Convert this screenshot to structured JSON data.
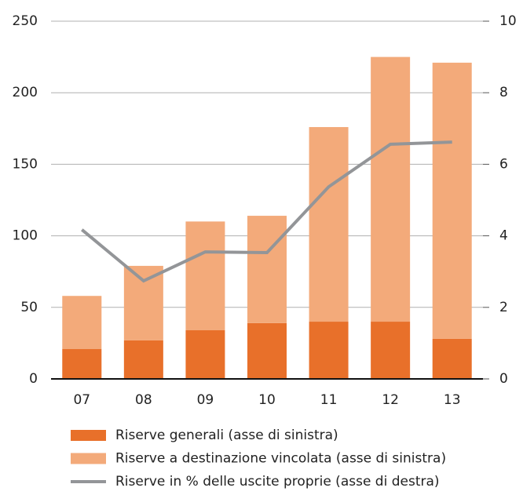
{
  "chart_data": {
    "type": "bar",
    "categories": [
      "07",
      "08",
      "09",
      "10",
      "11",
      "12",
      "13"
    ],
    "stacked": true,
    "series": [
      {
        "name": "Riserve generali (asse di sinistra)",
        "color": "#e8702a",
        "type": "bar",
        "values": [
          21,
          27,
          34,
          39,
          40,
          40,
          28
        ]
      },
      {
        "name": "Riserve a destinazione vincolata (asse di sinistra)",
        "color": "#f3aa7a",
        "type": "bar",
        "values": [
          37,
          52,
          76,
          75,
          136,
          185,
          193
        ]
      },
      {
        "name": "Riserve in % delle uscite proprie (asse di destra)",
        "color": "#939598",
        "type": "line",
        "axis": "y2",
        "values": [
          4.17,
          2.74,
          3.55,
          3.53,
          5.37,
          6.56,
          6.62
        ]
      }
    ],
    "ylim": [
      0,
      250
    ],
    "yticks": [
      0,
      50,
      100,
      150,
      200,
      250
    ],
    "y2lim": [
      0,
      10
    ],
    "y2ticks": [
      0,
      2,
      4,
      6,
      8,
      10
    ],
    "grid": true,
    "legend": "bottom"
  }
}
